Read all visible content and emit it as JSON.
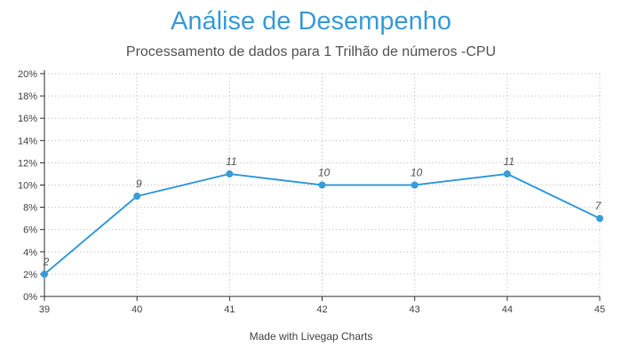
{
  "title": "Análise de Desempenho",
  "subtitle": "Processamento de dados para 1 Trilhão de números -CPU",
  "footer": "Made with Livegap Charts",
  "colors": {
    "line": "#3a9bd9",
    "title": "#3a9bd9",
    "grid": "#bbbbbb"
  },
  "chart_data": {
    "type": "line",
    "title": "Análise de Desempenho",
    "subtitle": "Processamento de dados para 1 Trilhão de números -CPU",
    "x": [
      39,
      40,
      41,
      42,
      43,
      44,
      45
    ],
    "values": [
      2,
      9,
      11,
      10,
      10,
      11,
      7
    ],
    "data_labels": [
      "2",
      "9",
      "11",
      "10",
      "10",
      "11",
      "7"
    ],
    "ylim": [
      0,
      20
    ],
    "yticks": [
      0,
      2,
      4,
      6,
      8,
      10,
      12,
      14,
      16,
      18,
      20
    ],
    "ytick_labels": [
      "0%",
      "2%",
      "4%",
      "6%",
      "8%",
      "10%",
      "12%",
      "14%",
      "16%",
      "18%",
      "20%"
    ],
    "xtick_labels": [
      "39",
      "40",
      "41",
      "42",
      "43",
      "44",
      "45"
    ],
    "grid": true,
    "xlabel": "",
    "ylabel": ""
  }
}
